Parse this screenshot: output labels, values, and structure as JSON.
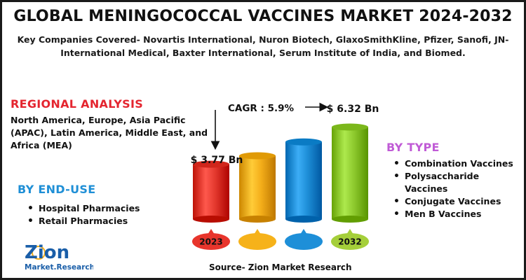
{
  "header": {
    "title": "GLOBAL MENINGOCOCCAL VACCINES MARKET 2024-2032",
    "subtitle": "Key Companies Covered- Novartis International, Nuron Biotech, GlaxoSmithKline, Pfizer, Sanofi, JN-International Medical, Baxter International, Serum Institute of India, and Biomed."
  },
  "regional": {
    "heading": "REGIONAL  ANALYSIS",
    "text": "North America, Europe, Asia Pacific (APAC), Latin America, Middle East, and Africa (MEA)"
  },
  "end_use": {
    "heading": "BY END-USE",
    "items": [
      "Hospital Pharmacies",
      "Retail Pharmacies"
    ]
  },
  "by_type": {
    "heading": "BY TYPE",
    "items": [
      "Combination Vaccines",
      "Polysaccharide Vaccines",
      "Conjugate Vaccines",
      "Men B Vaccines"
    ]
  },
  "source": "Source- Zion Market Research",
  "logo": {
    "line1": "Zion",
    "line2": "Market.Research."
  },
  "colors": {
    "regional_heading": "#e4252f",
    "end_use_heading": "#1f8fd6",
    "type_heading": "#c05bd6"
  },
  "chart_data": {
    "type": "bar",
    "categories": [
      "2023",
      "",
      "",
      "2032"
    ],
    "values": [
      3.77,
      4.35,
      5.3,
      6.32
    ],
    "value_labels": [
      "$ 3.77 Bn",
      "",
      "",
      "$ 6.32 Bn"
    ],
    "cagr_label": "CAGR : 5.9%",
    "colors": [
      "#e53a2f",
      "#f4ae1a",
      "#1e8fd8",
      "#8fcb2f"
    ],
    "year_badge_colors": [
      "#e8352c",
      "#f6b21a",
      "#1e8fd8",
      "#a5cf3a"
    ],
    "ylim": [
      0,
      7
    ]
  }
}
